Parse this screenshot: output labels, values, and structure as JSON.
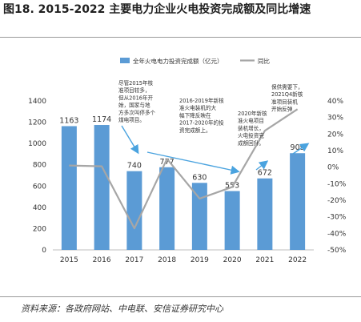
{
  "title": "图18. 2015-2022 主要电力企业火电投资完成额及同比增速",
  "source": "资料来源：各政府网站、中电联、安信证券研究中心",
  "chart_data": {
    "type": "bar+line",
    "categories": [
      "2015",
      "2016",
      "2017",
      "2018",
      "2019",
      "2020",
      "2021",
      "2022"
    ],
    "series": [
      {
        "name": "全年火电电力投资完成额（亿元）",
        "type": "bar",
        "axis": "left",
        "values": [
          1163,
          1174,
          740,
          777,
          630,
          553,
          672,
          909
        ]
      },
      {
        "name": "同比",
        "type": "line",
        "axis": "right",
        "values": [
          1,
          0.5,
          -37,
          5,
          -19,
          -12,
          22,
          35
        ]
      }
    ],
    "left_axis": {
      "min": 0,
      "max": 1400,
      "ticks": [
        0,
        200,
        400,
        600,
        800,
        1000,
        1200,
        1400
      ]
    },
    "right_axis": {
      "min": -50,
      "max": 40,
      "ticks": [
        "-50%",
        "-40%",
        "-30%",
        "-20%",
        "-10%",
        "0%",
        "10%",
        "20%",
        "30%",
        "40%"
      ]
    },
    "legend_position": "top",
    "colors": {
      "bar": "#5b9bd5",
      "line": "#a6a6a6",
      "arrow": "#4aa3df"
    },
    "annotations": [
      {
        "lines": [
          "尽管2015年核",
          "准项目较多，",
          "但从2016年开",
          "始，国家与地",
          "方多次叫停多个",
          "煤电项目。"
        ]
      },
      {
        "lines": [
          "2016-2019年新核",
          "准火电装机的大",
          "幅下降反映在",
          "2017-2020年的投",
          "资完成额上。"
        ]
      },
      {
        "lines": [
          "2020年新核",
          "准火电项目",
          "装机增长，",
          "火电投资完",
          "成额回升。"
        ]
      },
      {
        "lines": [
          "保供需要下，",
          "2021Q4新核",
          "准项目装机",
          "开始反弹"
        ]
      }
    ]
  }
}
